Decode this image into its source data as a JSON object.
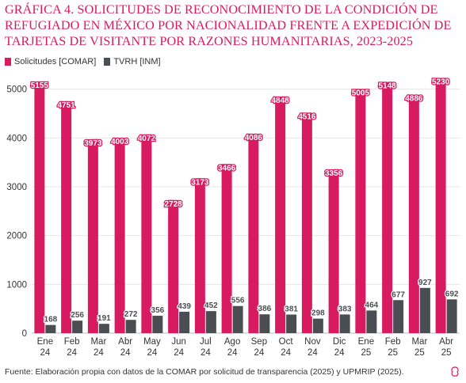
{
  "title": "GRÁFICA 4. SOLICITUDES DE RECONOCIMIENTO DE LA CONDICIÓN DE REFUGIADO EN MÉXICO POR NACIONALIDAD FRENTE A EXPEDICIÓN DE TARJETAS DE VISITANTE POR RAZONES HUMANITARIAS, 2023-2025",
  "source": "Fuente: Elaboración propia con datos de la COMAR por solicitud de transparencia (2025) y UPMRIP (2025).",
  "colors": {
    "comar": "#d81b60",
    "inm": "#4a4d52",
    "grid": "#e6e6e6",
    "text": "#333333"
  },
  "chart_data": {
    "type": "bar",
    "categories": [
      [
        "Ene",
        "24"
      ],
      [
        "Feb",
        "24"
      ],
      [
        "Mar",
        "24"
      ],
      [
        "Abr",
        "24"
      ],
      [
        "May",
        "24"
      ],
      [
        "Jun",
        "24"
      ],
      [
        "Jul",
        "24"
      ],
      [
        "Ago",
        "24"
      ],
      [
        "Sep",
        "24"
      ],
      [
        "Oct",
        "24"
      ],
      [
        "Nov",
        "24"
      ],
      [
        "Dic",
        "24"
      ],
      [
        "Ene",
        "25"
      ],
      [
        "Feb",
        "25"
      ],
      [
        "Mar",
        "25"
      ],
      [
        "Abr",
        "25"
      ]
    ],
    "series": [
      {
        "name": "Solicitudes [COMAR]",
        "values": [
          5155,
          4751,
          3973,
          4003,
          4072,
          2728,
          3173,
          3466,
          4086,
          4848,
          4516,
          3356,
          5005,
          5148,
          4886,
          5230
        ]
      },
      {
        "name": "TVRH [INM]",
        "values": [
          168,
          256,
          191,
          272,
          356,
          439,
          452,
          556,
          386,
          381,
          298,
          383,
          464,
          677,
          927,
          692
        ]
      }
    ],
    "yticks": [
      0,
      1000,
      2000,
      3000,
      4000,
      5000
    ],
    "ylim": [
      0,
      5400
    ],
    "grid": true,
    "legend": "top-left"
  }
}
